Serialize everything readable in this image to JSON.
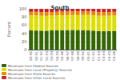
{
  "chart_data": {
    "type": "bar",
    "title": "South",
    "ylabel": "Percent",
    "categories": [
      "89-90",
      "90-91",
      "91-92",
      "92-93",
      "93-94",
      "94-95",
      "95-96",
      "96-97",
      "97-98",
      "98-99",
      "99-00",
      "00-01",
      "01-02",
      "02-03",
      "03-04",
      "04-05",
      "05-06"
    ],
    "stacked": true,
    "series": [
      {
        "name": "Revenues from Federal Sources",
        "color": "#336600",
        "values": [
          47.2,
          46.8,
          46.5,
          46.2,
          47.0,
          47.5,
          47.8,
          48.0,
          48.2,
          48.0,
          47.8,
          47.5,
          46.5,
          45.5,
          45.0,
          45.5,
          46.0
        ]
      },
      {
        "name": "Revenues from Local (Property) Sources",
        "color": "#dddd00",
        "values": [
          36.5,
          37.0,
          36.5,
          36.5,
          36.5,
          36.5,
          36.5,
          36.5,
          36.5,
          36.5,
          37.0,
          37.5,
          37.5,
          37.5,
          38.0,
          37.5,
          37.5
        ]
      },
      {
        "name": "Revenues from State Sources",
        "color": "#ee8800",
        "values": [
          8.8,
          8.8,
          9.2,
          9.4,
          8.9,
          8.7,
          8.7,
          8.8,
          8.8,
          9.0,
          8.8,
          8.6,
          9.0,
          9.1,
          9.0,
          9.2,
          9.0
        ]
      },
      {
        "name": "Revenues from Other Local Sources",
        "color": "#cc2222",
        "values": [
          7.5,
          7.4,
          7.8,
          7.9,
          7.6,
          7.3,
          7.0,
          6.7,
          6.5,
          6.5,
          6.4,
          6.4,
          7.0,
          7.9,
          8.0,
          7.8,
          7.5
        ]
      }
    ],
    "ylim": [
      0,
      100
    ],
    "yticks": [
      0,
      20,
      40,
      60,
      80,
      100
    ],
    "grid": true,
    "legend": "lower left"
  }
}
